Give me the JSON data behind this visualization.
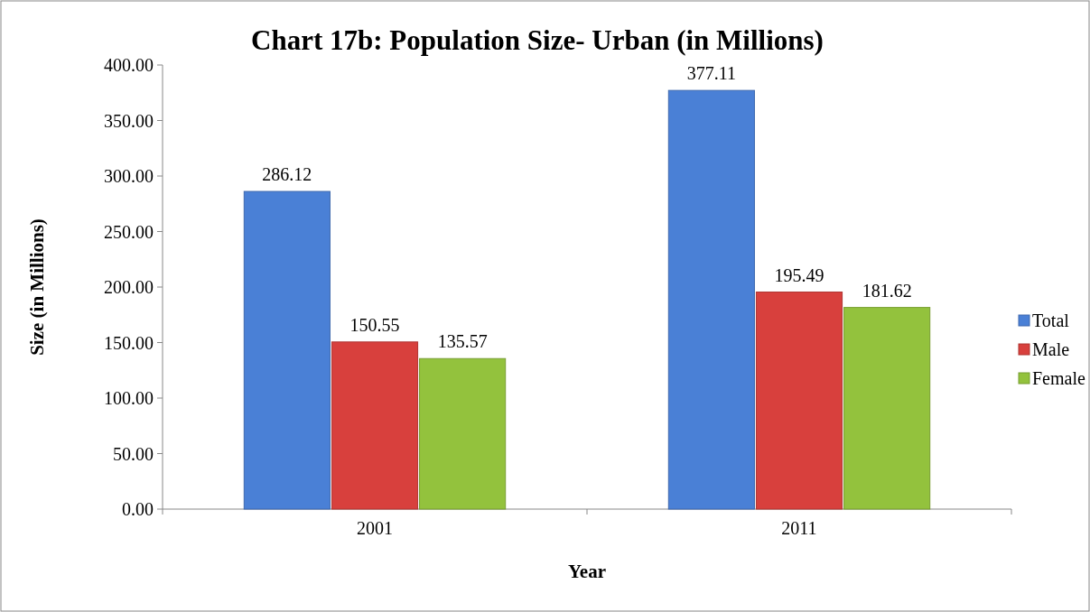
{
  "chart_data": {
    "type": "bar",
    "title": "Chart 17b: Population Size- Urban (in Millions)",
    "xlabel": "Year",
    "ylabel": "Size (in Millions)",
    "categories": [
      "2001",
      "2011"
    ],
    "series": [
      {
        "name": "Total",
        "color": "#4a80d6",
        "values": [
          286.12,
          377.11
        ]
      },
      {
        "name": "Male",
        "color": "#d8403d",
        "values": [
          150.55,
          195.49
        ]
      },
      {
        "name": "Female",
        "color": "#93c23d",
        "values": [
          135.57,
          181.62
        ]
      }
    ],
    "ylim": [
      0,
      400
    ],
    "yticks": [
      {
        "value": 0,
        "label": "0.00"
      },
      {
        "value": 50,
        "label": "50.00"
      },
      {
        "value": 100,
        "label": "100.00"
      },
      {
        "value": 150,
        "label": "150.00"
      },
      {
        "value": 200,
        "label": "200.00"
      },
      {
        "value": 250,
        "label": "250.00"
      },
      {
        "value": 300,
        "label": "300.00"
      },
      {
        "value": 350,
        "label": "350.00"
      },
      {
        "value": 400,
        "label": "400.00"
      }
    ],
    "data_labels": true,
    "legend": "right",
    "grid": false
  }
}
